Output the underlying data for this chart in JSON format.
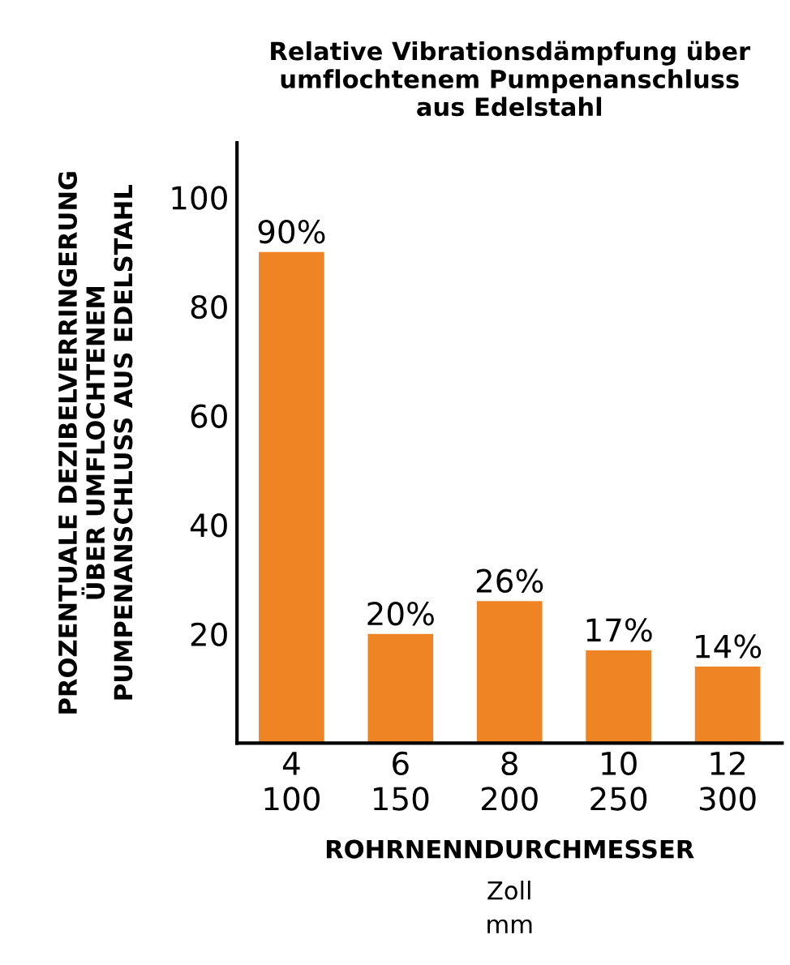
{
  "chart_data": {
    "type": "bar",
    "title": "Relative Vibrationsdämpfung über\numflochtenem Pumpenanschluss\naus Edelstahl",
    "xlabel": "ROHRNENNDURCHMESSER",
    "ylabel": "PROZENTUALE DEZIBELVERRINGERUNG\nÜBER UMFLOCHTENEM\nPUMPENANSCHLUSS AUS EDELSTAHL",
    "annotations": [
      "Zoll",
      "mm"
    ],
    "categories": [
      "4\n100",
      "6\n150",
      "8\n200",
      "10\n250",
      "12\n300"
    ],
    "values": [
      90,
      20,
      26,
      17,
      14
    ],
    "color": "#ee8424",
    "value_labels": [
      "90%",
      "20%",
      "26%",
      "17%",
      "14%"
    ],
    "ylim": [
      0,
      110
    ],
    "yticks": [
      20,
      40,
      60,
      80,
      100
    ],
    "grid": false,
    "legend": false
  }
}
